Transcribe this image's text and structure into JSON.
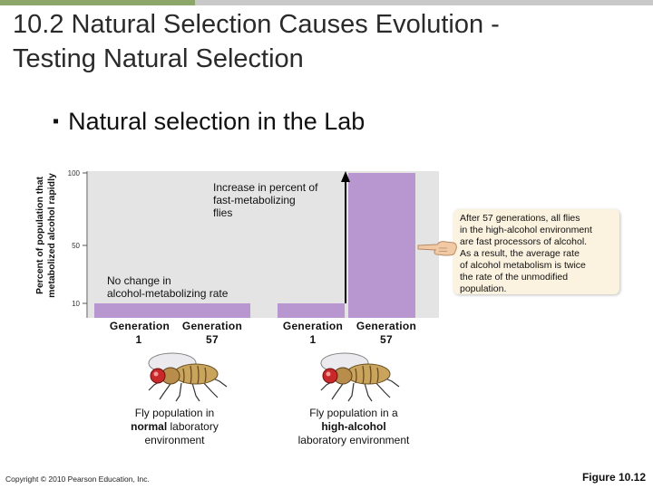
{
  "slide": {
    "title_line1": "10.2 Natural Selection Causes Evolution -",
    "title_line2": "Testing Natural Selection",
    "bullet": "Natural selection in the Lab",
    "copyright": "Copyright © 2010 Pearson Education, Inc.",
    "figure_label": "Figure 10.12",
    "colors": {
      "accent_green": "#8da66a",
      "accent_grey": "#c9c9c9",
      "bar": "#b896cf",
      "plot_bg": "#e4e4e4"
    }
  },
  "annotations": {
    "increase_line1": "Increase in percent of",
    "increase_line2": "fast-metabolizing",
    "increase_line3": "flies",
    "nochange_line1": "No change in",
    "nochange_line2": "alcohol-metabolizing rate"
  },
  "note": {
    "lines": [
      "After 57 generations, all flies",
      "in the high-alcohol environment",
      "are fast processors of alcohol.",
      "As a result, the average rate",
      "of alcohol metabolism is twice",
      "the rate of the unmodified",
      "population."
    ]
  },
  "groups": [
    {
      "gen_labels": [
        {
          "top": "Generation",
          "bottom": "1"
        },
        {
          "top": "Generation",
          "bottom": "57"
        }
      ],
      "caption_line1": "Fly population in",
      "caption_bold": "normal",
      "caption_rest": " laboratory",
      "caption_line3": "environment",
      "fly_icon": "fruit-fly-icon"
    },
    {
      "gen_labels": [
        {
          "top": "Generation",
          "bottom": "1"
        },
        {
          "top": "Generation",
          "bottom": "57"
        }
      ],
      "caption_line1": "Fly population in a",
      "caption_bold": "high-alcohol",
      "caption_rest": "",
      "caption_line3": "laboratory environment",
      "fly_icon": "fruit-fly-icon"
    }
  ],
  "chart_data": {
    "type": "bar",
    "ylabel_line1": "Percent of population that",
    "ylabel_line2": "metabolized alcohol rapidly",
    "yticks": [
      10,
      50,
      100
    ],
    "ylim": [
      0,
      100
    ],
    "grid": false,
    "series": [
      {
        "group": "normal",
        "values": [
          10,
          10
        ]
      },
      {
        "group": "high-alcohol",
        "values": [
          10,
          100
        ]
      }
    ],
    "arrow_from": 10,
    "arrow_to": 100
  }
}
